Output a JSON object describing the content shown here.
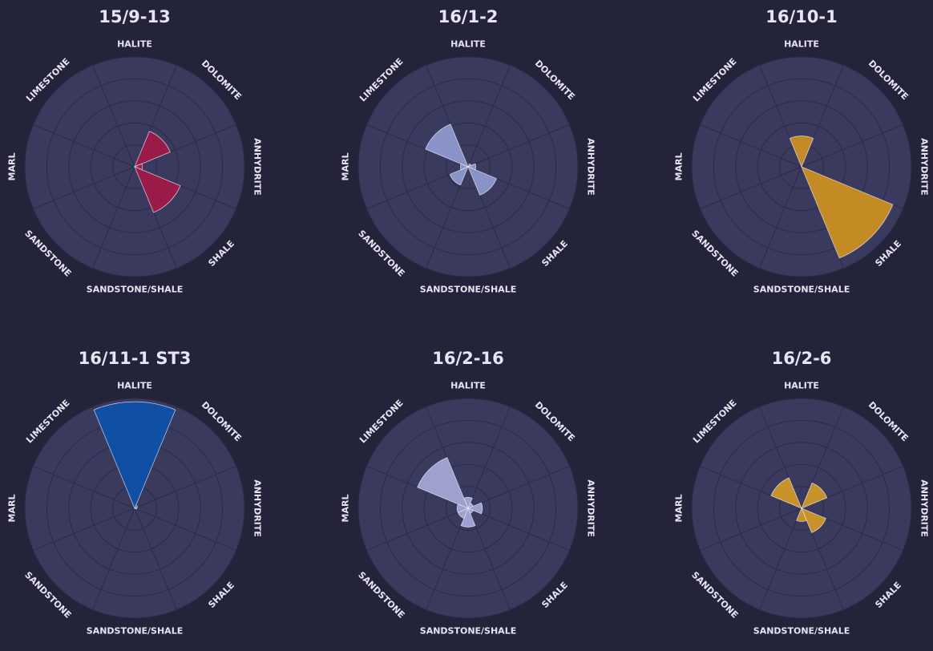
{
  "chart_data": [
    {
      "type": "polar-bar",
      "title": "15/9-13",
      "categories": [
        "HALITE",
        "DOLOMITE",
        "ANHYDRITE",
        "SHALE",
        "SANDSTONE/SHALE",
        "SANDSTONE",
        "MARL",
        "LIMESTONE"
      ],
      "values": [
        0,
        0.35,
        0.07,
        0.45,
        0,
        0,
        0,
        0
      ],
      "rlim": [
        0,
        1
      ],
      "grid": true,
      "color": "#9b1b48"
    },
    {
      "type": "polar-bar",
      "title": "16/1-2",
      "categories": [
        "HALITE",
        "DOLOMITE",
        "ANHYDRITE",
        "SHALE",
        "SANDSTONE/SHALE",
        "SANDSTONE",
        "MARL",
        "LIMESTONE"
      ],
      "values": [
        0,
        0.03,
        0.07,
        0.28,
        0,
        0.18,
        0.07,
        0.42
      ],
      "rlim": [
        0,
        1
      ],
      "grid": true,
      "color": "#8a93c8"
    },
    {
      "type": "polar-bar",
      "title": "16/10-1",
      "categories": [
        "HALITE",
        "DOLOMITE",
        "ANHYDRITE",
        "SHALE",
        "SANDSTONE/SHALE",
        "SANDSTONE",
        "MARL",
        "LIMESTONE"
      ],
      "values": [
        0.28,
        0,
        0,
        0.9,
        0,
        0,
        0,
        0
      ],
      "rlim": [
        0,
        1
      ],
      "grid": true,
      "color": "#c48a23"
    },
    {
      "type": "polar-bar",
      "title": "16/11-1 ST3",
      "categories": [
        "HALITE",
        "DOLOMITE",
        "ANHYDRITE",
        "SHALE",
        "SANDSTONE/SHALE",
        "SANDSTONE",
        "MARL",
        "LIMESTONE"
      ],
      "values": [
        0.97,
        0.03,
        0.02,
        0,
        0,
        0,
        0,
        0
      ],
      "rlim": [
        0,
        1
      ],
      "grid": true,
      "color": "#0f4fa5"
    },
    {
      "type": "polar-bar",
      "title": "16/2-16",
      "categories": [
        "HALITE",
        "DOLOMITE",
        "ANHYDRITE",
        "SHALE",
        "SANDSTONE/SHALE",
        "SANDSTONE",
        "MARL",
        "LIMESTONE"
      ],
      "values": [
        0.1,
        0.05,
        0.13,
        0.05,
        0.17,
        0.1,
        0.1,
        0.5
      ],
      "rlim": [
        0,
        1
      ],
      "grid": true,
      "color": "#9ea0ce"
    },
    {
      "type": "polar-bar",
      "title": "16/2-6",
      "categories": [
        "HALITE",
        "DOLOMITE",
        "ANHYDRITE",
        "SHALE",
        "SANDSTONE/SHALE",
        "SANDSTONE",
        "MARL",
        "LIMESTONE"
      ],
      "values": [
        0,
        0.25,
        0,
        0.24,
        0.12,
        0,
        0,
        0.3
      ],
      "rlim": [
        0,
        1
      ],
      "grid": true,
      "color": "#c8922a"
    }
  ],
  "colors": {
    "background": "#23233a",
    "polar_face": "#3a3a5e",
    "grid": "#2b2b48",
    "text": "#e6e6f2"
  }
}
